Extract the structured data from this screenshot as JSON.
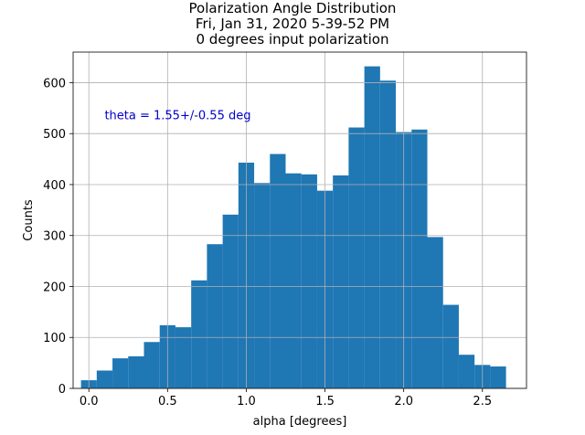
{
  "chart_data": {
    "type": "bar",
    "title_lines": [
      "Polarization Angle Distribution",
      "Fri, Jan 31, 2020 5-39-52 PM",
      "0 degrees input polarization"
    ],
    "xlabel": "alpha [degrees]",
    "ylabel": "Counts",
    "xlim": [
      -0.1,
      2.78
    ],
    "ylim": [
      0,
      660
    ],
    "xticks": [
      0.0,
      0.5,
      1.0,
      1.5,
      2.0,
      2.5
    ],
    "xtick_labels": [
      "0.0",
      "0.5",
      "1.0",
      "1.5",
      "2.0",
      "2.5"
    ],
    "yticks": [
      0,
      100,
      200,
      300,
      400,
      500,
      600
    ],
    "ytick_labels": [
      "0",
      "100",
      "200",
      "300",
      "400",
      "500",
      "600"
    ],
    "grid": true,
    "bar_color": "#1f77b4",
    "annotation": {
      "text": "theta = 1.55+/-0.55 deg",
      "x": 0.1,
      "y": 530,
      "color": "#0000cc"
    },
    "bins": [
      {
        "x0": -0.05,
        "x1": 0.05,
        "value": 16
      },
      {
        "x0": 0.05,
        "x1": 0.15,
        "value": 35
      },
      {
        "x0": 0.15,
        "x1": 0.25,
        "value": 59
      },
      {
        "x0": 0.25,
        "x1": 0.35,
        "value": 63
      },
      {
        "x0": 0.35,
        "x1": 0.45,
        "value": 91
      },
      {
        "x0": 0.45,
        "x1": 0.55,
        "value": 124
      },
      {
        "x0": 0.55,
        "x1": 0.65,
        "value": 120
      },
      {
        "x0": 0.65,
        "x1": 0.75,
        "value": 212
      },
      {
        "x0": 0.75,
        "x1": 0.85,
        "value": 283
      },
      {
        "x0": 0.85,
        "x1": 0.95,
        "value": 341
      },
      {
        "x0": 0.95,
        "x1": 1.05,
        "value": 443
      },
      {
        "x0": 1.05,
        "x1": 1.15,
        "value": 403
      },
      {
        "x0": 1.15,
        "x1": 1.25,
        "value": 460
      },
      {
        "x0": 1.25,
        "x1": 1.35,
        "value": 422
      },
      {
        "x0": 1.35,
        "x1": 1.45,
        "value": 420
      },
      {
        "x0": 1.45,
        "x1": 1.55,
        "value": 388
      },
      {
        "x0": 1.55,
        "x1": 1.65,
        "value": 418
      },
      {
        "x0": 1.65,
        "x1": 1.75,
        "value": 512
      },
      {
        "x0": 1.75,
        "x1": 1.85,
        "value": 632
      },
      {
        "x0": 1.85,
        "x1": 1.95,
        "value": 604
      },
      {
        "x0": 1.95,
        "x1": 2.05,
        "value": 503
      },
      {
        "x0": 2.05,
        "x1": 2.15,
        "value": 508
      },
      {
        "x0": 2.15,
        "x1": 2.25,
        "value": 297
      },
      {
        "x0": 2.25,
        "x1": 2.35,
        "value": 164
      },
      {
        "x0": 2.35,
        "x1": 2.45,
        "value": 66
      },
      {
        "x0": 2.45,
        "x1": 2.55,
        "value": 46
      },
      {
        "x0": 2.55,
        "x1": 2.65,
        "value": 43
      }
    ]
  }
}
